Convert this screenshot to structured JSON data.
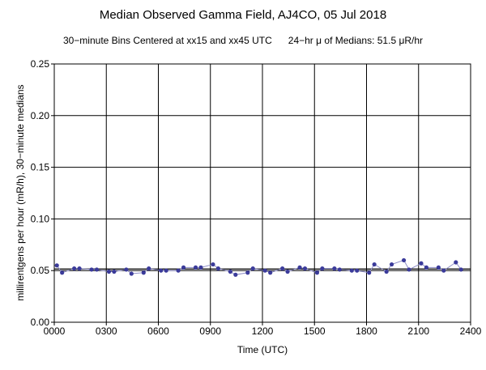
{
  "chart_data": {
    "type": "line",
    "title": "Median Observed Gamma Field, AJ4CO, 05 Jul 2018",
    "subtitle_left": "30−minute Bins Centered at xx15 and xx45 UTC",
    "subtitle_right": "24−hr μ of Medians: 51.5 μR/hr",
    "xlabel": "Time (UTC)",
    "ylabel": "millirentgens per hour (mR/h), 30−minute medians",
    "xlim": [
      0,
      2400
    ],
    "ylim": [
      0,
      0.25
    ],
    "x_ticks": [
      0,
      300,
      600,
      900,
      1200,
      1500,
      1800,
      2100,
      2400
    ],
    "x_tick_labels": [
      "0000",
      "0300",
      "0600",
      "0900",
      "1200",
      "1500",
      "1800",
      "2100",
      "2400"
    ],
    "y_ticks": [
      0,
      0.05,
      0.1,
      0.15,
      0.2,
      0.25
    ],
    "y_tick_labels": [
      "0.00",
      "0.05",
      "0.10",
      "0.15",
      "0.20",
      "0.25"
    ],
    "grid": true,
    "reference_line": 0.0515,
    "series": [
      {
        "color": "#3b3b9a",
        "x": [
          15,
          45,
          115,
          145,
          215,
          245,
          315,
          345,
          415,
          445,
          515,
          545,
          615,
          645,
          715,
          745,
          815,
          845,
          915,
          945,
          1015,
          1045,
          1115,
          1145,
          1215,
          1245,
          1315,
          1345,
          1415,
          1445,
          1515,
          1545,
          1615,
          1645,
          1715,
          1745,
          1815,
          1845,
          1915,
          1945,
          2015,
          2045,
          2115,
          2145,
          2215,
          2245,
          2315,
          2345
        ],
        "values": [
          0.055,
          0.048,
          0.052,
          0.052,
          0.051,
          0.051,
          0.049,
          0.049,
          0.051,
          0.047,
          0.048,
          0.052,
          0.05,
          0.05,
          0.05,
          0.053,
          0.053,
          0.053,
          0.056,
          0.052,
          0.049,
          0.046,
          0.048,
          0.052,
          0.05,
          0.048,
          0.052,
          0.049,
          0.053,
          0.052,
          0.048,
          0.052,
          0.052,
          0.051,
          0.05,
          0.05,
          0.048,
          0.056,
          0.049,
          0.056,
          0.06,
          0.051,
          0.057,
          0.053,
          0.053,
          0.05,
          0.058,
          0.051
        ]
      }
    ]
  }
}
